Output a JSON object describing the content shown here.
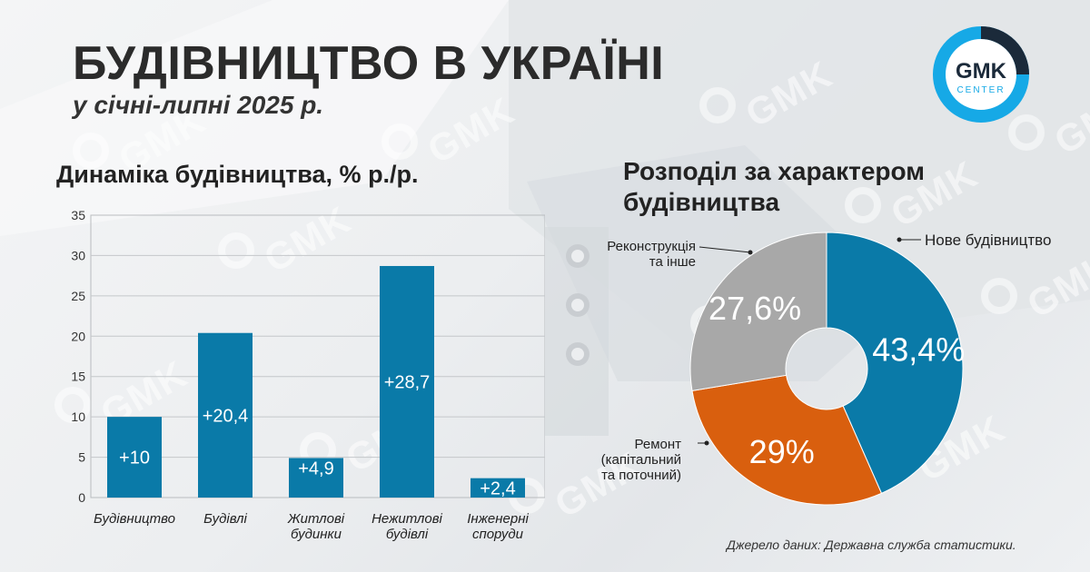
{
  "header": {
    "title": "БУДІВНИЦТВО В УКРАЇНІ",
    "subtitle": "у січні-липні 2025 р."
  },
  "logo": {
    "text_main": "GMK",
    "text_sub": "CENTER",
    "colors": {
      "ring": "#16a9e6",
      "dark": "#1b2a3a",
      "accent": "#0fa3de"
    }
  },
  "watermark_text": "GMK",
  "colors": {
    "bar": "#0a7aa8",
    "pie_new": "#0a7aa8",
    "pie_repair": "#d95f0e",
    "pie_reconstruction": "#a8a8a8"
  },
  "chart_data": [
    {
      "type": "bar",
      "title": "Динаміка будівництва, % р./р.",
      "categories": [
        [
          "Будівництво"
        ],
        [
          "Будівлі"
        ],
        [
          "Житлові",
          "будинки"
        ],
        [
          "Нежитлові",
          "будівлі"
        ],
        [
          "Інженерні",
          "споруди"
        ]
      ],
      "values": [
        10,
        20.4,
        4.9,
        28.7,
        2.4
      ],
      "data_labels": [
        "+10",
        "+20,4",
        "+4,9",
        "+28,7",
        "+2,4"
      ],
      "ylim": [
        0,
        35
      ],
      "yticks": [
        0,
        5,
        10,
        15,
        20,
        25,
        30,
        35
      ],
      "grid": true
    },
    {
      "type": "pie",
      "title_lines": [
        "Розподіл за характером",
        "будівництва"
      ],
      "slices": [
        {
          "label": [
            "Нове будівництво"
          ],
          "value": 43.4,
          "data_label": "43,4%",
          "color": "#0a7aa8"
        },
        {
          "label": [
            "Ремонт",
            "(капітальний",
            "та поточний)"
          ],
          "value": 29,
          "data_label": "29%",
          "color": "#d95f0e"
        },
        {
          "label": [
            "Реконструкція",
            "та інше"
          ],
          "value": 27.6,
          "data_label": "27,6%",
          "color": "#a8a8a8"
        }
      ],
      "donut": true
    }
  ],
  "source": "Джерело даних: Державна служба статистики."
}
